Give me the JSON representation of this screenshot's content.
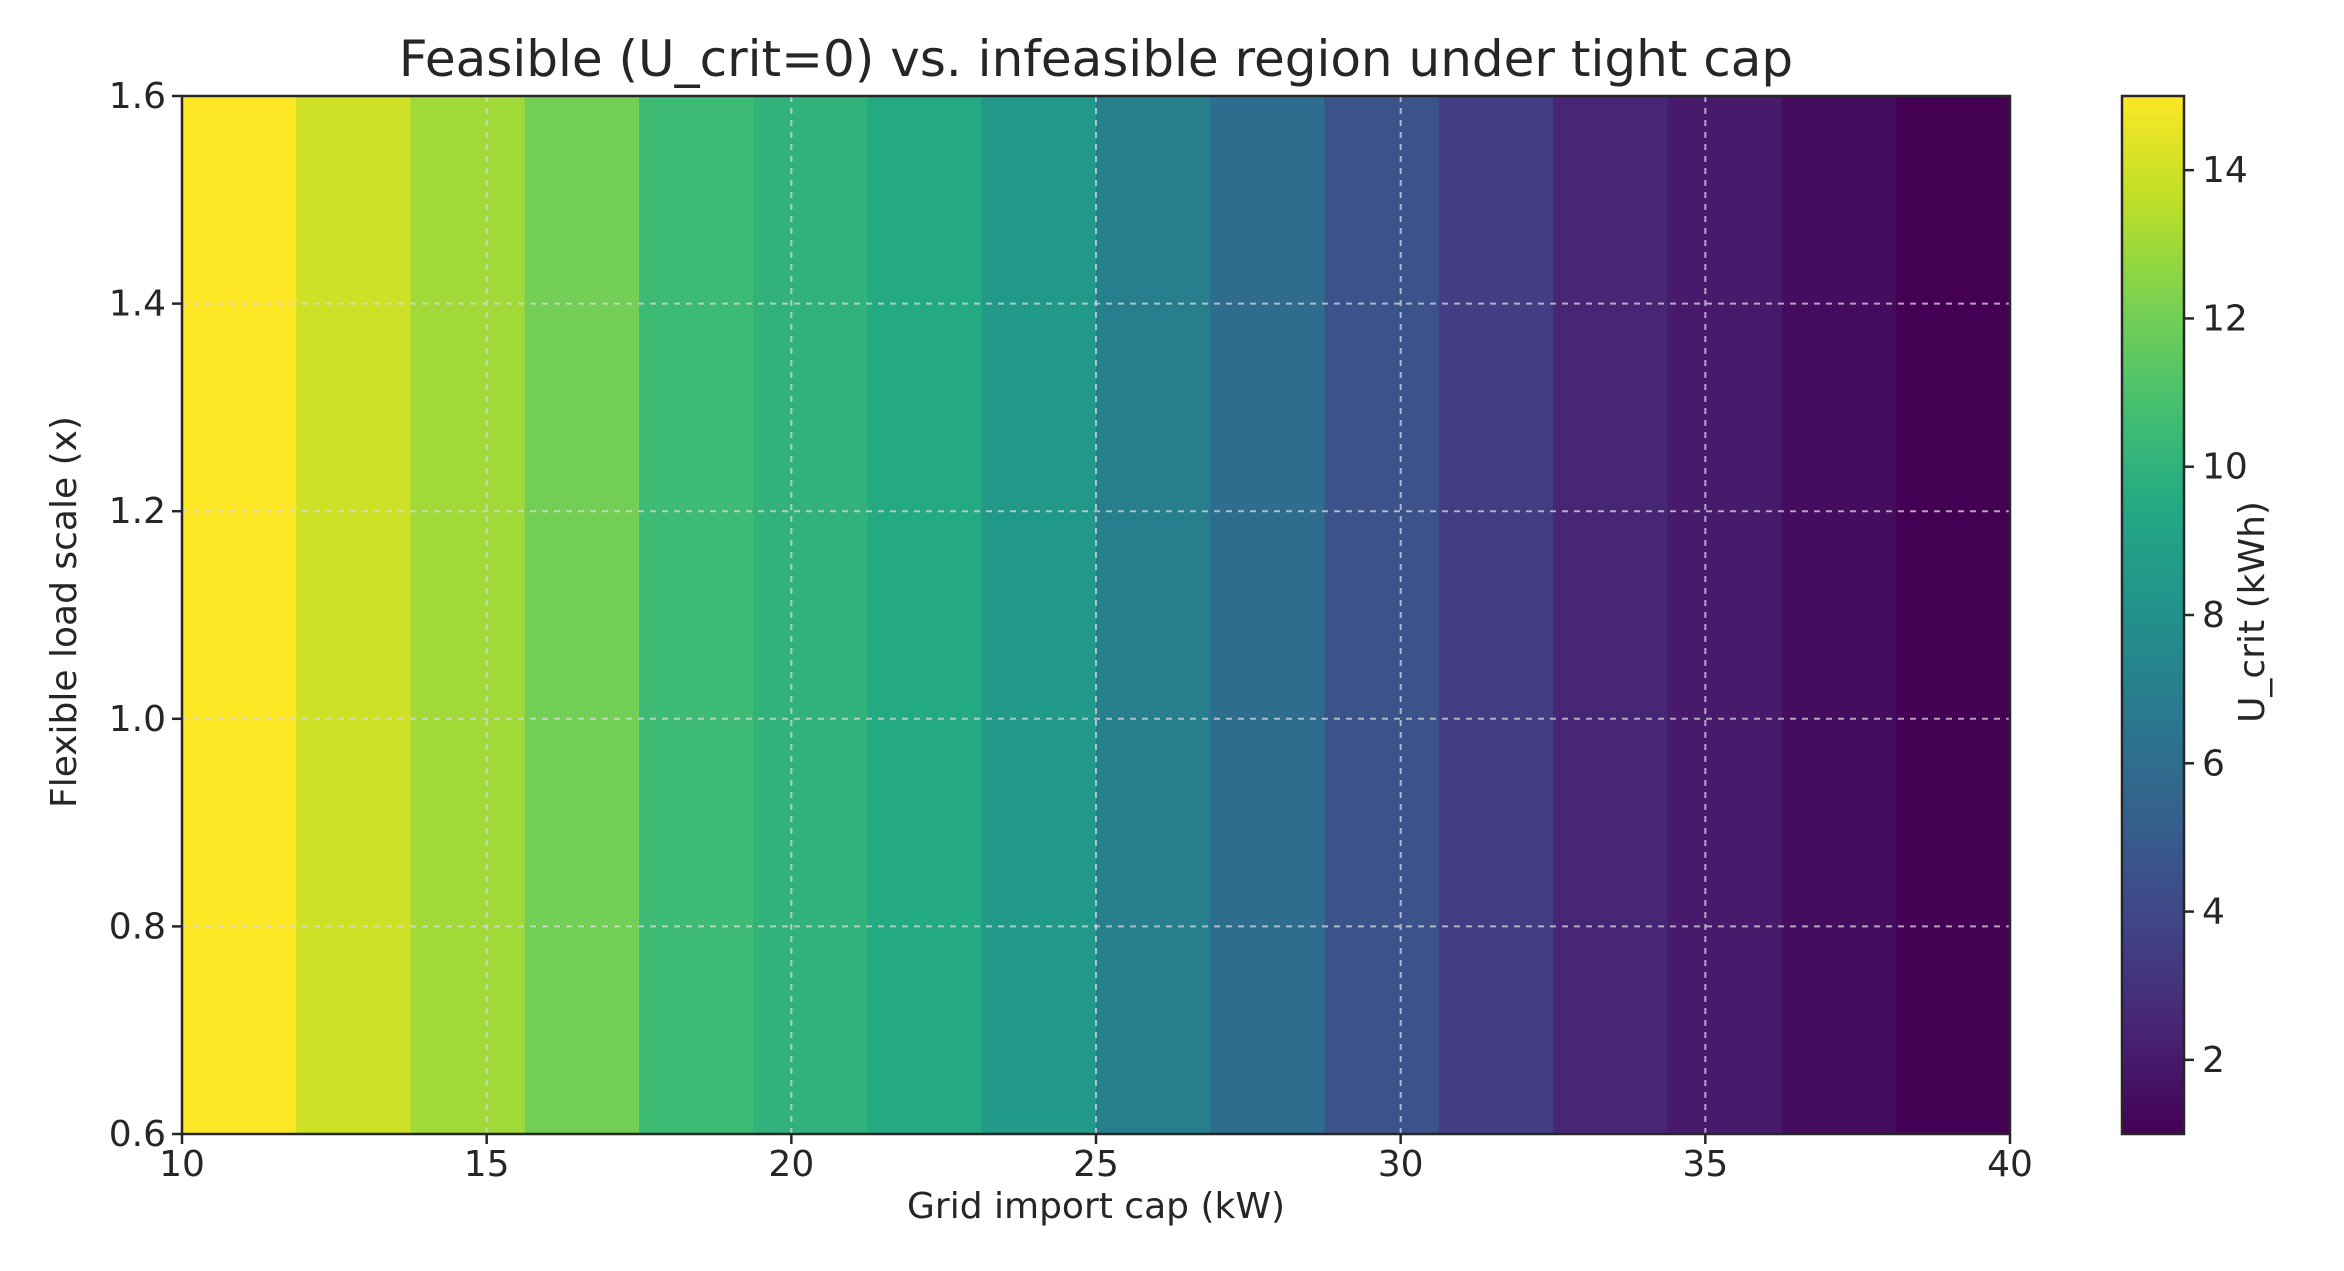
{
  "chart_data": {
    "type": "heatmap",
    "title": "Feasible (U_crit=0) vs. infeasible region under tight cap",
    "xlabel": "Grid import cap (kW)",
    "ylabel": "Flexible load scale (x)",
    "xlim": [
      10,
      40
    ],
    "ylim": [
      0.6,
      1.6
    ],
    "xticks": [
      10,
      15,
      20,
      25,
      30,
      35,
      40
    ],
    "xtick_labels": [
      "10",
      "15",
      "20",
      "25",
      "30",
      "35",
      "40"
    ],
    "yticks": [
      0.6,
      0.8,
      1.0,
      1.2,
      1.4,
      1.6
    ],
    "ytick_labels": [
      "0.6",
      "0.8",
      "1.0",
      "1.2",
      "1.4",
      "1.6"
    ],
    "x_bin_edges": [
      10,
      11.875,
      13.75,
      15.625,
      17.5,
      19.375,
      21.25,
      23.125,
      25,
      26.875,
      28.75,
      30.625,
      32.5,
      34.375,
      36.25,
      38.125,
      40
    ],
    "values": [
      15,
      14,
      13,
      12,
      10.5,
      10,
      9.5,
      8.5,
      7,
      6,
      4.5,
      3.5,
      2.5,
      2,
      1.5,
      1
    ],
    "grid": true,
    "colormap": "viridis",
    "colorbar": {
      "label": "U_crit (kWh)",
      "range": [
        1,
        15
      ],
      "ticks": [
        2,
        4,
        6,
        8,
        10,
        12,
        14
      ],
      "tick_labels": [
        "2",
        "4",
        "6",
        "8",
        "10",
        "12",
        "14"
      ]
    }
  }
}
